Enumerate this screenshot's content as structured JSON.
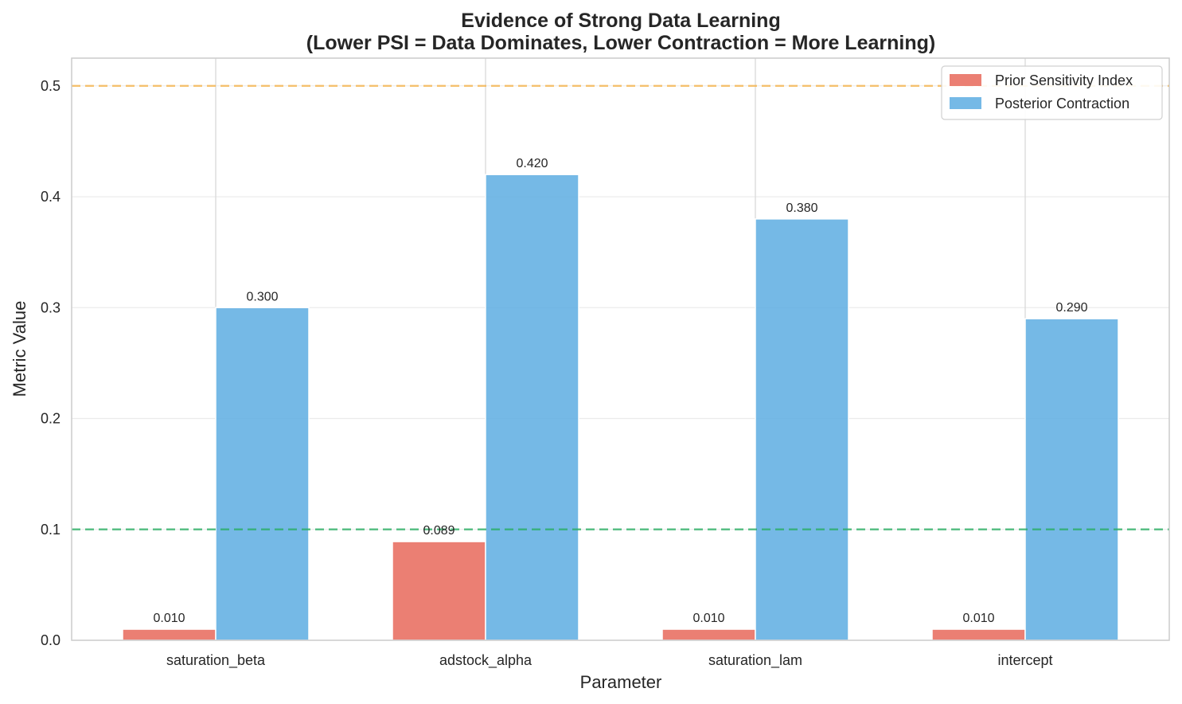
{
  "chart_data": {
    "type": "bar",
    "title_lines": [
      "Evidence of Strong Data Learning",
      "(Lower PSI = Data Dominates, Lower Contraction = More Learning)"
    ],
    "xlabel": "Parameter",
    "ylabel": "Metric Value",
    "categories": [
      "saturation_beta",
      "adstock_alpha",
      "saturation_lam",
      "intercept"
    ],
    "series": [
      {
        "name": "Prior Sensitivity Index",
        "color": "#e8685a",
        "values": [
          0.01,
          0.089,
          0.01,
          0.01
        ],
        "labels": [
          "0.010",
          "0.089",
          "0.010",
          "0.010"
        ]
      },
      {
        "name": "Posterior Contraction",
        "color": "#5dade2",
        "values": [
          0.3,
          0.42,
          0.38,
          0.29
        ],
        "labels": [
          "0.300",
          "0.420",
          "0.380",
          "0.290"
        ]
      }
    ],
    "ylim": [
      0,
      0.525
    ],
    "yticks": [
      0.0,
      0.1,
      0.2,
      0.3,
      0.4,
      0.5
    ],
    "ytick_labels": [
      "0.0",
      "0.1",
      "0.2",
      "0.3",
      "0.4",
      "0.5"
    ],
    "reference_lines": [
      {
        "y": 0.5,
        "color": "#f5b041",
        "style": "dashed"
      },
      {
        "y": 0.1,
        "color": "#27ae60",
        "style": "dashed"
      }
    ],
    "grid": "y",
    "legend_position": "top-right"
  }
}
